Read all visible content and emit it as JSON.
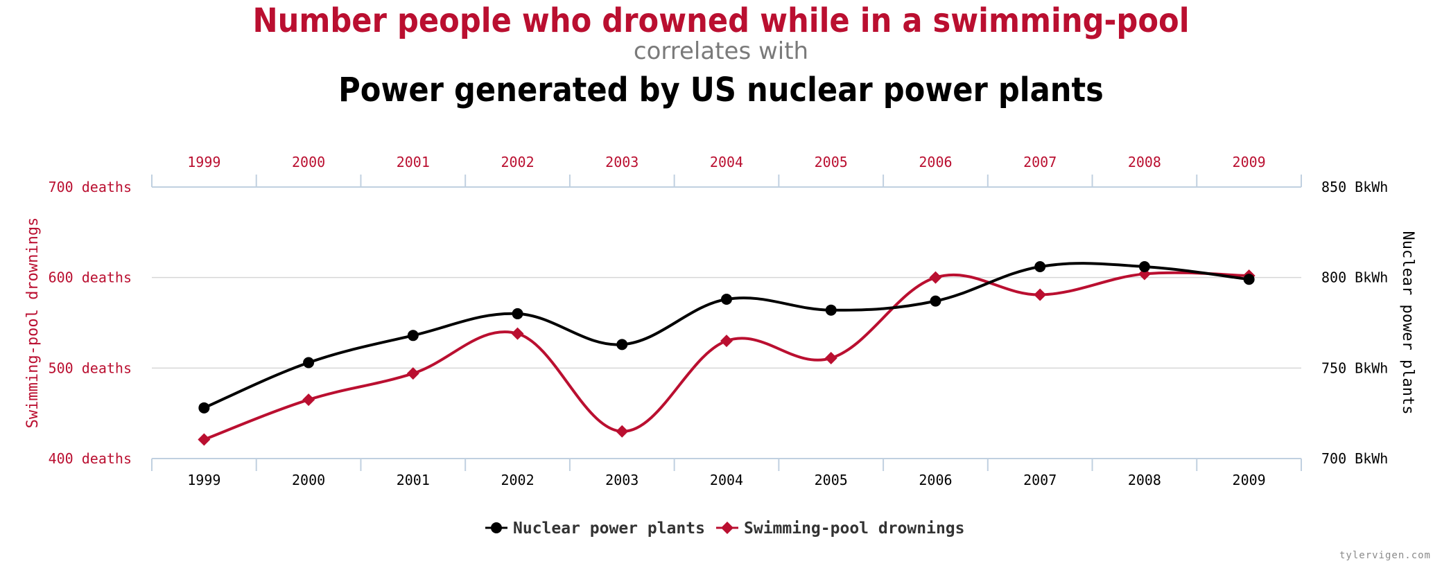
{
  "header": {
    "title_primary": "Number people who drowned while in a swimming-pool",
    "subtitle": "correlates with",
    "title_secondary": "Power generated by US nuclear power plants"
  },
  "watermark": "tylervigen.com",
  "colors": {
    "drownings": "#ba0f30",
    "nuclear": "#000000",
    "grid": "#d6d6d6",
    "axis": "#c0d0e0"
  },
  "chart_data": {
    "type": "line",
    "title": "Number people who drowned while in a swimming-pool correlates with Power generated by US nuclear power plants",
    "categories": [
      "1999",
      "2000",
      "2001",
      "2002",
      "2003",
      "2004",
      "2005",
      "2006",
      "2007",
      "2008",
      "2009"
    ],
    "left_axis": {
      "label": "Swimming-pool drownings",
      "range": [
        400,
        700
      ],
      "ticks": [
        {
          "value": 700,
          "label": "700 deaths"
        },
        {
          "value": 600,
          "label": "600 deaths"
        },
        {
          "value": 500,
          "label": "500 deaths"
        },
        {
          "value": 400,
          "label": "400 deaths"
        }
      ]
    },
    "right_axis": {
      "label": "Nuclear power plants",
      "range": [
        700,
        850
      ],
      "ticks": [
        {
          "value": 850,
          "label": "850 BkWh"
        },
        {
          "value": 800,
          "label": "800 BkWh"
        },
        {
          "value": 750,
          "label": "750 BkWh"
        },
        {
          "value": 700,
          "label": "700 BkWh"
        }
      ]
    },
    "grid": true,
    "legend_position": "bottom-center",
    "series": [
      {
        "name": "Nuclear power plants",
        "axis": "right",
        "marker": "circle",
        "values": [
          728,
          753,
          768,
          780,
          763,
          788,
          782,
          787,
          806,
          806,
          799
        ]
      },
      {
        "name": "Swimming-pool drownings",
        "axis": "left",
        "marker": "diamond",
        "values": [
          421,
          465,
          494,
          538,
          430,
          530,
          511,
          600,
          581,
          604,
          602
        ]
      }
    ]
  }
}
